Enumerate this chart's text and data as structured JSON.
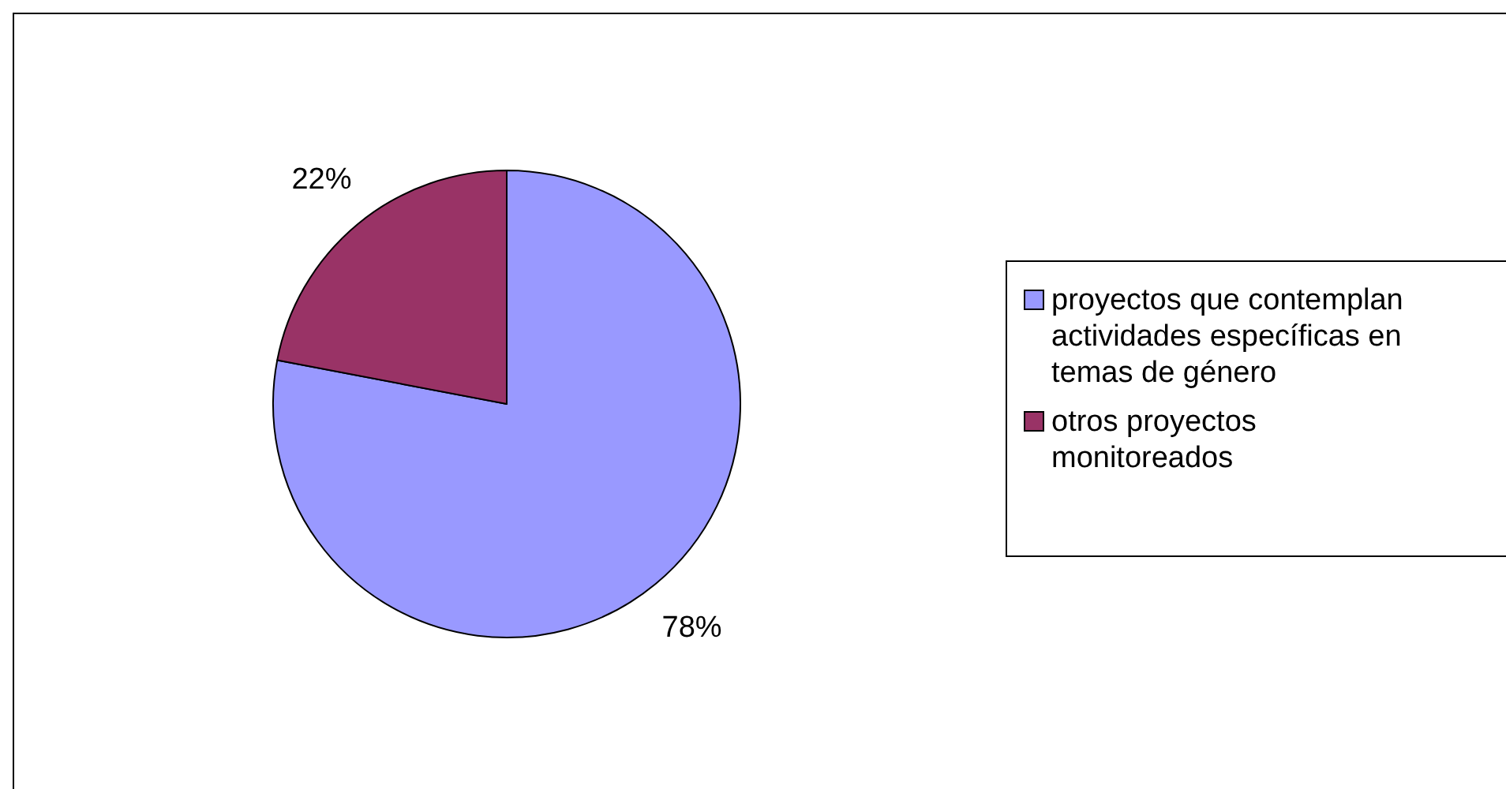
{
  "chart_data": {
    "type": "pie",
    "categories": [
      "proyectos que contemplan actividades específicas en temas de género",
      "otros proyectos monitoreados"
    ],
    "values": [
      78,
      22
    ],
    "colors": [
      "#9999ff",
      "#993366"
    ],
    "value_labels": [
      "78%",
      "22%"
    ],
    "legend": "right"
  }
}
